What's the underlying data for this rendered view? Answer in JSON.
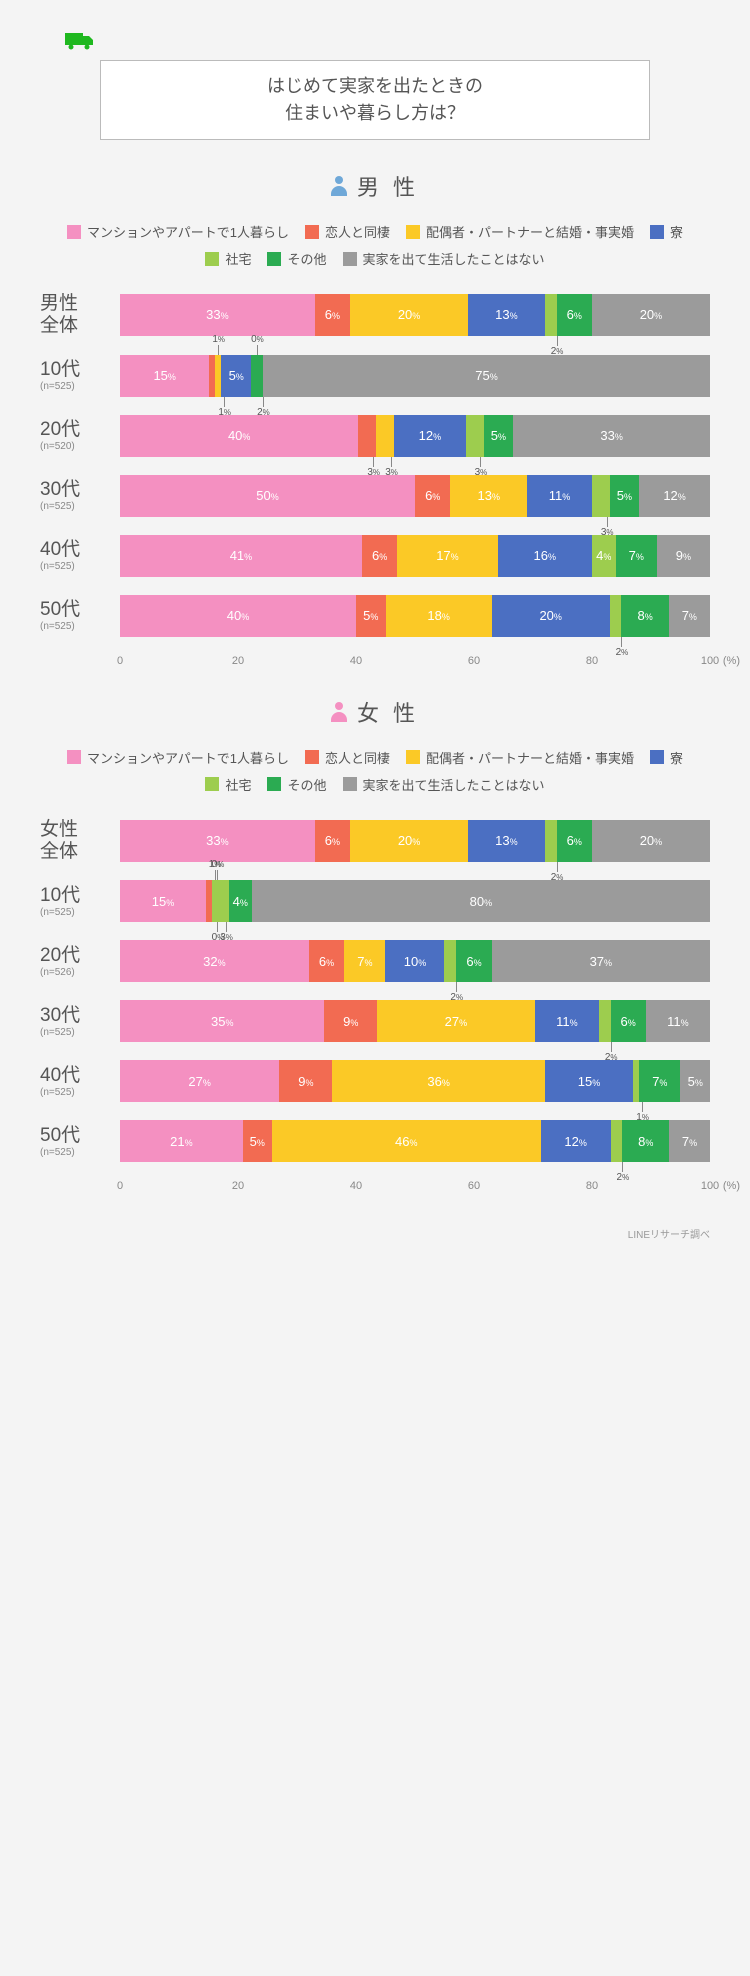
{
  "title_line1": "はじめて実家を出たときの",
  "title_line2": "住まいや暮らし方は？",
  "footer": "LINEリサーチ調べ",
  "axis_unit": "(%)",
  "axis_ticks": [
    0,
    20,
    40,
    60,
    80,
    100
  ],
  "categories": [
    {
      "label": "マンションやアパートで1人暮らし",
      "color": "#f490c1"
    },
    {
      "label": "恋人と同棲",
      "color": "#f26b52"
    },
    {
      "label": "配偶者・パートナーと結婚・事実婚",
      "color": "#fbc926"
    },
    {
      "label": "寮",
      "color": "#4b6fc2"
    },
    {
      "label": "社宅",
      "color": "#9dcd4e"
    },
    {
      "label": "その他",
      "color": "#2bab52"
    },
    {
      "label": "実家を出て生活したことはない",
      "color": "#9b9b9b"
    }
  ],
  "sections": [
    {
      "title": "男 性",
      "icon_color": "#6fa8d8",
      "rows": [
        {
          "label": "男性\n全体",
          "sub": "",
          "vals": [
            33,
            6,
            20,
            13,
            2,
            6,
            20
          ],
          "callouts": [
            {
              "i": 4,
              "pos": "bot"
            }
          ]
        },
        {
          "label": "10代",
          "sub": "(n=525)",
          "vals": [
            15,
            1,
            1,
            5,
            0,
            2,
            75
          ],
          "callouts": [
            {
              "i": 1,
              "pos": "top"
            },
            {
              "i": 2,
              "pos": "bot"
            },
            {
              "i": 4,
              "pos": "top"
            },
            {
              "i": 5,
              "pos": "bot"
            }
          ]
        },
        {
          "label": "20代",
          "sub": "(n=520)",
          "vals": [
            40,
            3,
            3,
            12,
            3,
            5,
            33
          ],
          "callouts": [
            {
              "i": 1,
              "pos": "bot"
            },
            {
              "i": 2,
              "pos": "bot"
            },
            {
              "i": 4,
              "pos": "bot"
            }
          ]
        },
        {
          "label": "30代",
          "sub": "(n=525)",
          "vals": [
            50,
            6,
            13,
            11,
            3,
            5,
            12
          ],
          "callouts": [
            {
              "i": 4,
              "pos": "bot"
            }
          ]
        },
        {
          "label": "40代",
          "sub": "(n=525)",
          "vals": [
            41,
            6,
            17,
            16,
            4,
            7,
            9
          ],
          "callouts": []
        },
        {
          "label": "50代",
          "sub": "(n=525)",
          "vals": [
            40,
            5,
            18,
            20,
            2,
            8,
            7
          ],
          "callouts": [
            {
              "i": 4,
              "pos": "bot"
            }
          ]
        }
      ]
    },
    {
      "title": "女 性",
      "icon_color": "#f490c1",
      "rows": [
        {
          "label": "女性\n全体",
          "sub": "",
          "vals": [
            33,
            6,
            20,
            13,
            2,
            6,
            20
          ],
          "callouts": [
            {
              "i": 4,
              "pos": "bot"
            }
          ]
        },
        {
          "label": "10代",
          "sub": "(n=525)",
          "vals": [
            15,
            1,
            0,
            0,
            3,
            4,
            80
          ],
          "callouts": [
            {
              "i": 1,
              "pos": "top"
            },
            {
              "i": 2,
              "pos": "top"
            },
            {
              "i": 3,
              "pos": "bot"
            },
            {
              "i": 4,
              "pos": "bot"
            }
          ]
        },
        {
          "label": "20代",
          "sub": "(n=526)",
          "vals": [
            32,
            6,
            7,
            10,
            2,
            6,
            37
          ],
          "callouts": [
            {
              "i": 4,
              "pos": "bot"
            }
          ]
        },
        {
          "label": "30代",
          "sub": "(n=525)",
          "vals": [
            35,
            9,
            27,
            11,
            2,
            6,
            11
          ],
          "callouts": [
            {
              "i": 4,
              "pos": "bot"
            }
          ]
        },
        {
          "label": "40代",
          "sub": "(n=525)",
          "vals": [
            27,
            9,
            36,
            15,
            1,
            7,
            5
          ],
          "callouts": [
            {
              "i": 4,
              "pos": "bot"
            }
          ]
        },
        {
          "label": "50代",
          "sub": "(n=525)",
          "vals": [
            21,
            5,
            46,
            12,
            2,
            8,
            7
          ],
          "callouts": [
            {
              "i": 4,
              "pos": "bot"
            }
          ]
        }
      ]
    }
  ]
}
